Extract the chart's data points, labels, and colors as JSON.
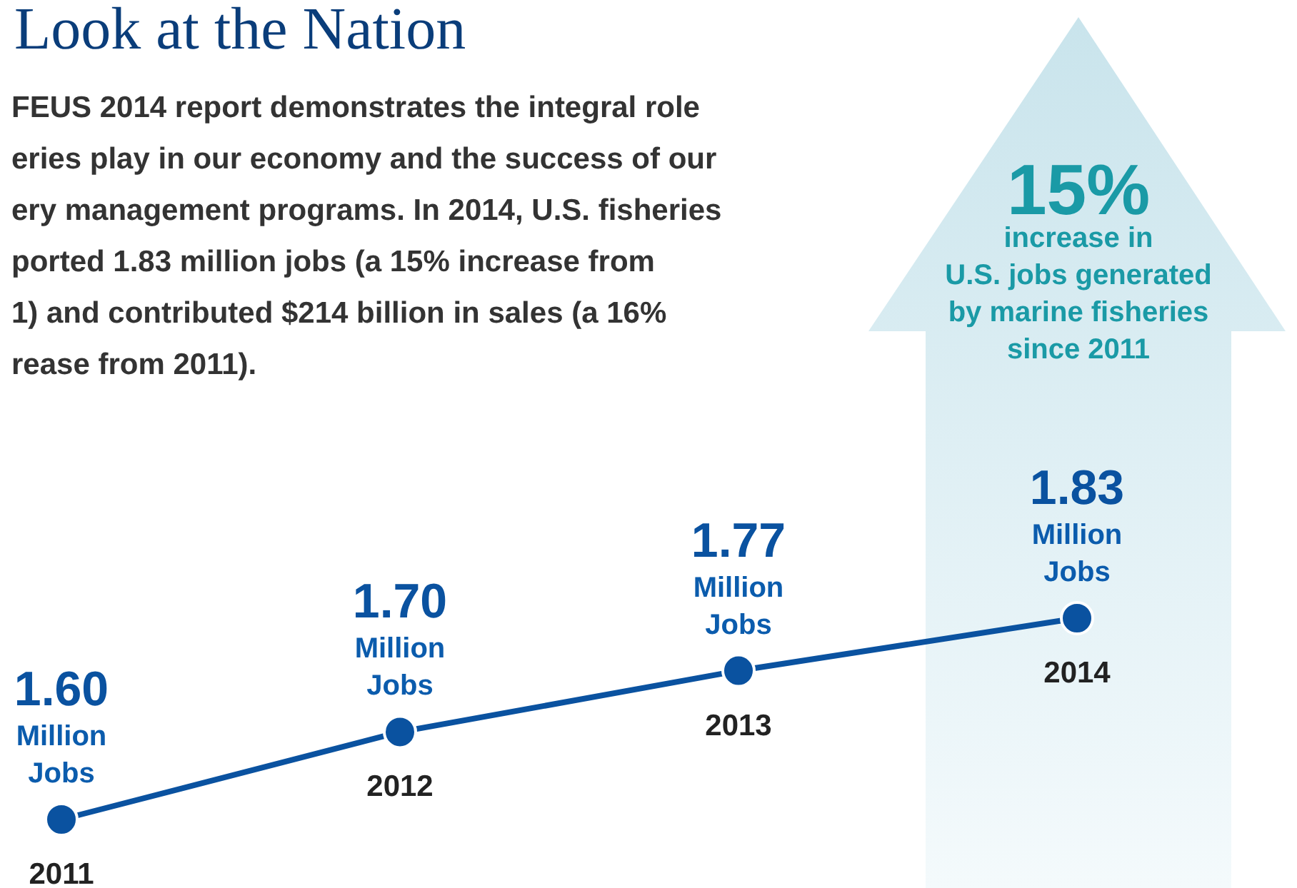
{
  "chart_data": {
    "type": "line",
    "title": "Look at the Nation",
    "subtitle": "FEUS 2014 report demonstrates the integral role\neries play in our economy and the success of our\nery management programs. In 2014, U.S. fisheries\nported 1.83 million jobs (a 15% increase from\n1) and contributed $214 billion in sales (a 16%\nrease from 2011).",
    "categories": [
      "2011",
      "2012",
      "2013",
      "2014"
    ],
    "series": [
      {
        "color": "#0a52a0",
        "values": [
          1.6,
          1.7,
          1.77,
          1.83
        ],
        "value_labels": [
          "1.60",
          "1.70",
          "1.77",
          "1.83"
        ]
      }
    ],
    "marker": "circle",
    "annotations": [
      {
        "text": "Million\nJobs",
        "x": "2011",
        "y": 1.6
      },
      {
        "text": "Million\nJobs",
        "x": "2012",
        "y": 1.7
      },
      {
        "text": "Million\nJobs",
        "x": "2013",
        "y": 1.77
      },
      {
        "text": "Million\nJobs",
        "x": "2014",
        "y": 1.83
      },
      "15%",
      "increase in\nU.S. jobs generated\nby marine fisheries\nsince 2011"
    ]
  }
}
